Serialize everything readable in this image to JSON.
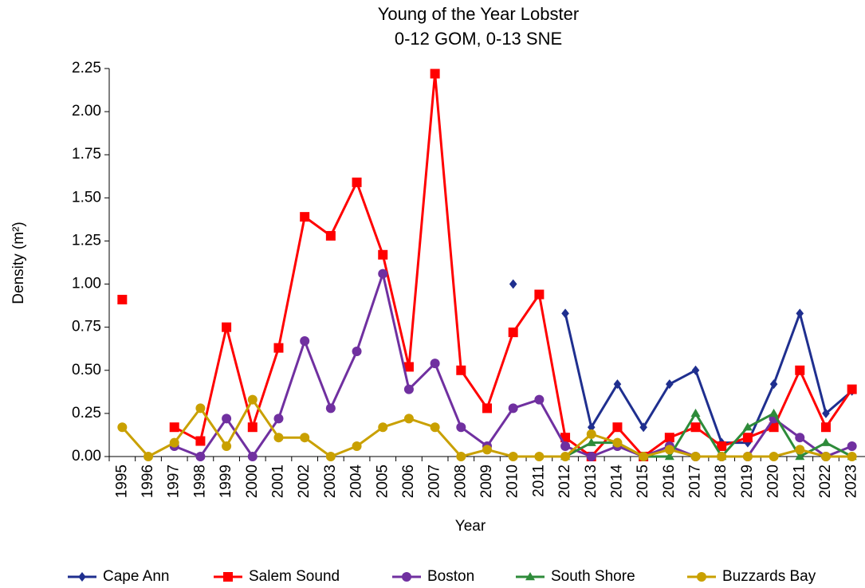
{
  "chart_data": {
    "type": "line",
    "title": "Young of the Year Lobster",
    "subtitle": "0-12 GOM, 0-13 SNE",
    "x_label": "Year",
    "y_label": "Density (m²)",
    "categories": [
      "1995",
      "1996",
      "1997",
      "1998",
      "1999",
      "2000",
      "2001",
      "2002",
      "2003",
      "2004",
      "2005",
      "2006",
      "2007",
      "2008",
      "2009",
      "2010",
      "2011",
      "2012",
      "2013",
      "2014",
      "2015",
      "2016",
      "2017",
      "2018",
      "2019",
      "2020",
      "2021",
      "2022",
      "2023"
    ],
    "ylim": [
      0,
      2.25
    ],
    "yticks": [
      {
        "value": 0,
        "label": "0.00"
      },
      {
        "value": 0.25,
        "label": "0.25"
      },
      {
        "value": 0.5,
        "label": "0.50"
      },
      {
        "value": 0.75,
        "label": "0.75"
      },
      {
        "value": 1,
        "label": "1.00"
      },
      {
        "value": 1.25,
        "label": "1.25"
      },
      {
        "value": 1.5,
        "label": "1.50"
      },
      {
        "value": 1.75,
        "label": "1.75"
      },
      {
        "value": 2,
        "label": "2.00"
      },
      {
        "value": 2.25,
        "label": "2.25"
      }
    ],
    "grid": false,
    "legend": "bottom",
    "series": [
      {
        "name": "Cape Ann",
        "color": "#1f2f8f",
        "marker": "diamond",
        "values": [
          null,
          null,
          null,
          null,
          null,
          null,
          null,
          null,
          null,
          null,
          null,
          null,
          null,
          null,
          null,
          1.0,
          null,
          0.83,
          0.17,
          0.42,
          0.17,
          0.42,
          0.5,
          0.08,
          0.08,
          0.42,
          0.83,
          0.25,
          0.38
        ]
      },
      {
        "name": "Salem Sound",
        "color": "#ff0000",
        "marker": "square",
        "values": [
          0.91,
          null,
          0.17,
          0.09,
          0.75,
          0.17,
          0.63,
          1.39,
          1.28,
          1.59,
          1.17,
          0.52,
          2.22,
          0.5,
          0.28,
          0.72,
          0.94,
          0.11,
          0,
          0.17,
          0,
          0.11,
          0.17,
          0.06,
          0.11,
          0.17,
          0.5,
          0.17,
          0.39
        ]
      },
      {
        "name": "Boston",
        "color": "#7030a0",
        "marker": "circle",
        "values": [
          null,
          null,
          0.06,
          0,
          0.22,
          0,
          0.22,
          0.67,
          0.28,
          0.61,
          1.06,
          0.39,
          0.54,
          0.17,
          0.06,
          0.28,
          0.33,
          0.06,
          0,
          0.06,
          0,
          0.06,
          0,
          0,
          0,
          0.22,
          0.11,
          0,
          0.06
        ]
      },
      {
        "name": "South Shore",
        "color": "#2e8b3a",
        "marker": "triangle",
        "values": [
          null,
          null,
          null,
          null,
          null,
          null,
          null,
          null,
          null,
          null,
          null,
          null,
          null,
          null,
          null,
          null,
          null,
          0,
          0.08,
          0.08,
          0,
          0,
          0.25,
          0,
          0.17,
          0.25,
          0,
          0.08,
          0
        ]
      },
      {
        "name": "Buzzards Bay",
        "color": "#c9a000",
        "marker": "circle",
        "values": [
          0.17,
          0,
          0.08,
          0.28,
          0.06,
          0.33,
          0.11,
          0.11,
          0,
          0.06,
          0.17,
          0.22,
          0.17,
          0,
          0.04,
          0,
          0,
          0,
          0.13,
          0.08,
          0,
          0.04,
          0,
          0,
          0,
          0,
          0.04,
          0,
          0
        ]
      }
    ]
  }
}
